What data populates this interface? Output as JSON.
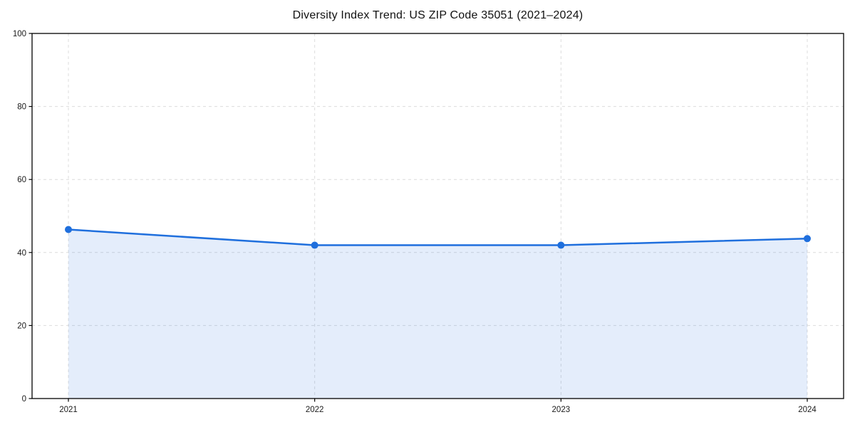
{
  "chart_data": {
    "type": "line",
    "title": "Diversity Index Trend: US ZIP Code 35051 (2021–2024)",
    "x": [
      "2021",
      "2022",
      "2023",
      "2024"
    ],
    "series": [
      {
        "name": "Diversity Index",
        "values": [
          46.3,
          42.0,
          42.0,
          43.8
        ]
      }
    ],
    "xlabel": "",
    "ylabel": "",
    "ylim": [
      0,
      100
    ],
    "yticks": [
      0,
      20,
      40,
      60,
      80,
      100
    ],
    "grid": true,
    "grid_style": "dashed",
    "legend_position": "none",
    "area_fill": true,
    "colors": {
      "line": "#1f6fdd",
      "marker": "#1f6fdd",
      "area": "rgba(31,111,221,0.12)",
      "grid": "#dcdcdc",
      "axis": "#000000",
      "background": "#ffffff",
      "text": "#1a1a1a"
    }
  }
}
